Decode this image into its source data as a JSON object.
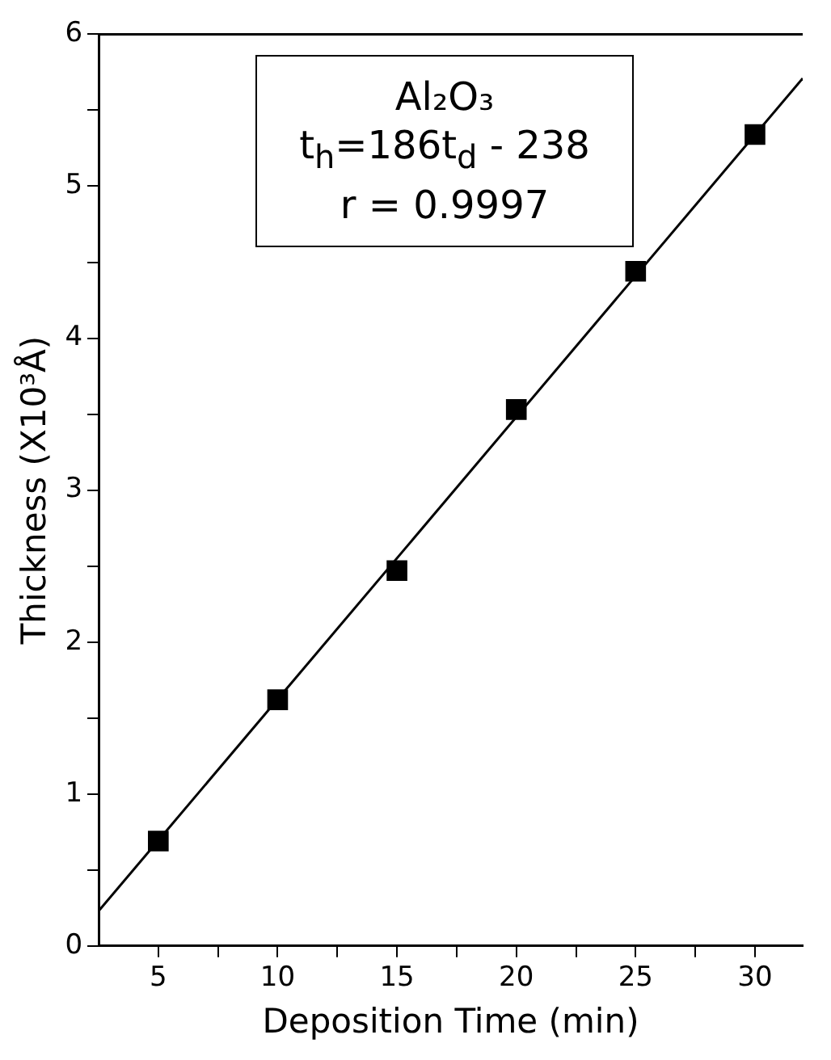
{
  "chart_data": {
    "type": "scatter",
    "xlabel": "Deposition Time (min)",
    "ylabel": "Thickness (X10³Å)",
    "x": [
      5,
      10,
      15,
      20,
      25,
      30
    ],
    "series": [
      {
        "type": "scatter",
        "color": "#000000",
        "marker": "square",
        "values": [
          0.69,
          1.62,
          2.47,
          3.53,
          4.44,
          5.34
        ]
      },
      {
        "type": "line",
        "color": "#000000",
        "marker": "none",
        "line_style": "solid",
        "x": [
          2.5,
          32
        ],
        "values": [
          0.23,
          5.71
        ]
      }
    ],
    "xlim": [
      2.5,
      32
    ],
    "ylim": [
      0,
      6
    ],
    "xticks": [
      5,
      {
        "value": 7.5,
        "label": null
      },
      10,
      {
        "value": 12.5,
        "label": null
      },
      15,
      {
        "value": 17.5,
        "label": null
      },
      20,
      {
        "value": 22.5,
        "label": null
      },
      25,
      {
        "value": 27.5,
        "label": null
      },
      30
    ],
    "yticks": [
      0,
      {
        "value": 0.5,
        "label": null
      },
      1,
      {
        "value": 1.5,
        "label": null
      },
      2,
      {
        "value": 2.5,
        "label": null
      },
      3,
      {
        "value": 3.5,
        "label": null
      },
      4,
      {
        "value": 4.5,
        "label": null
      },
      5,
      {
        "value": 5.5,
        "label": null
      },
      6
    ],
    "grid": false,
    "legend": false,
    "annotations": [
      "Al₂O₃",
      "t$_{h}$=186t$_{d}$ - 238",
      "r = 0.9997"
    ]
  }
}
